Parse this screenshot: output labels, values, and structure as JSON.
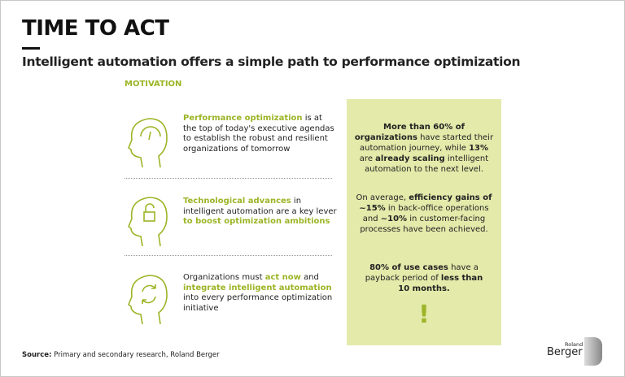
{
  "header": {
    "title": "TIME TO ACT",
    "subtitle": "Intelligent automation offers a simple path to performance optimization"
  },
  "section_label": "MOTIVATION",
  "items": [
    {
      "icon": "head-gauge-icon",
      "parts": [
        "Performance optimization",
        " is at the top of today's executive agendas to establish the robust and resilient organizations of tomorrow"
      ]
    },
    {
      "icon": "head-lock-icon",
      "parts": [
        "Technological advances",
        " in intelligent automation are a key lever ",
        "to boost optimization ambitions"
      ]
    },
    {
      "icon": "head-cycle-icon",
      "parts": [
        "Organizations must ",
        "act now",
        " and ",
        "integrate intelligent automation",
        " into every performance optimization initiative"
      ]
    }
  ],
  "facts": [
    {
      "parts": [
        "More than 60% of organizations",
        " have started their automation journey, while ",
        "13%",
        " are ",
        "already scaling",
        " intelligent automation to the next level."
      ]
    },
    {
      "parts": [
        "On average, ",
        "efficiency gains of ~15%",
        " in back-office operations and ",
        "~10%",
        " in customer-facing processes have been achieved."
      ]
    },
    {
      "parts": [
        "80% of use cases",
        " have a payback period of ",
        "less than 10 months."
      ]
    }
  ],
  "exclamation": "!",
  "source": {
    "label": "Source:",
    "text": " Primary and secondary research, Roland Berger"
  },
  "logo": {
    "top": "Roland",
    "bottom": "Berger"
  },
  "colors": {
    "accent": "#9bb526",
    "box": "#e3eaaa"
  }
}
